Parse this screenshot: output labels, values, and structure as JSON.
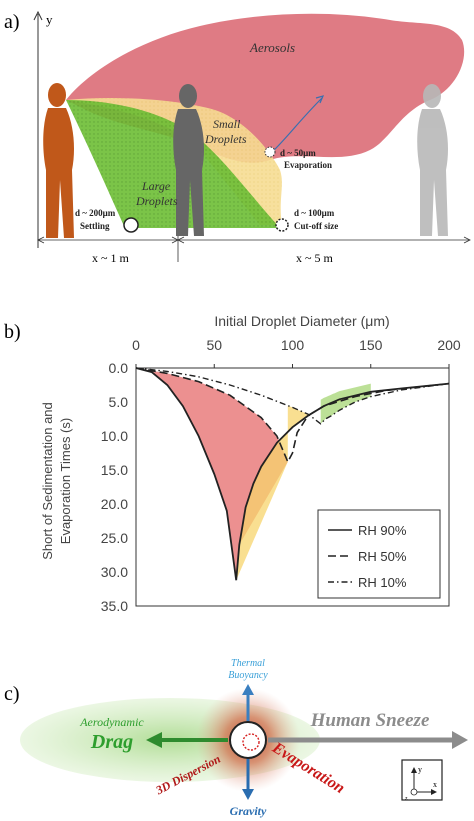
{
  "panel_a": {
    "label": "a)",
    "y_axis": "y",
    "aerosols": "Aerosols",
    "small_droplets_1": "Small",
    "small_droplets_2": "Droplets",
    "large_droplets_1": "Large",
    "large_droplets_2": "Droplets",
    "evap_size": "d ~ 50μm",
    "evap_label": "Evaporation",
    "settling_size": "d ~ 200μm",
    "settling_label": "Settling",
    "cutoff_size": "d ~ 100μm",
    "cutoff_label": "Cut-off size",
    "dist_near": "x ~ 1 m",
    "dist_far": "x ~ 5 m",
    "colors": {
      "aerosol": "#d9646e",
      "large": "#6fbf3a",
      "small": "#f5d98a",
      "person_front": "#c0581a",
      "person_mid": "#6b6b6b",
      "person_back": "#b0b0b0"
    }
  },
  "panel_b": {
    "label": "b)"
  },
  "chart_data": {
    "type": "line",
    "xlabel": "Initial Droplet Diameter (μm)",
    "ylabel_1": "Short of Sedimentation and",
    "ylabel_2": "Evaporation Times (s)",
    "x_ticks": [
      "0",
      "50",
      "100",
      "150",
      "200"
    ],
    "y_ticks": [
      "0.0",
      "5.0",
      "10.0",
      "15.0",
      "20.0",
      "25.0",
      "30.0",
      "35.0"
    ],
    "xlim": [
      0,
      200
    ],
    "ylim": [
      0,
      35
    ],
    "y_inverted": true,
    "x_axis_position": "top",
    "legend_position": "bottom-right",
    "series": [
      {
        "name": "RH 90%",
        "style": "solid",
        "x": [
          0,
          10,
          20,
          30,
          40,
          50,
          58,
          64,
          66,
          70,
          75,
          80,
          90,
          100,
          110,
          120,
          130,
          150,
          170,
          200
        ],
        "y": [
          0,
          0.6,
          2.5,
          5.6,
          10.0,
          15.6,
          21.0,
          31.2,
          26.0,
          20.5,
          17.0,
          14.5,
          11.0,
          8.7,
          7.0,
          5.6,
          4.6,
          3.5,
          3.0,
          2.3
        ]
      },
      {
        "name": "RH 50%",
        "style": "dashed",
        "x": [
          0,
          20,
          40,
          60,
          80,
          90,
          97,
          100,
          103,
          110,
          120,
          140,
          160,
          200
        ],
        "y": [
          0,
          0.8,
          2.0,
          4.0,
          7.3,
          10.0,
          13.8,
          12.5,
          9.5,
          7.0,
          5.6,
          4.2,
          3.3,
          2.3
        ]
      },
      {
        "name": "RH 10%",
        "style": "dash-dot",
        "x": [
          0,
          20,
          40,
          60,
          80,
          100,
          110,
          118,
          121,
          125,
          130,
          140,
          150,
          170,
          200
        ],
        "y": [
          0,
          0.5,
          1.3,
          2.5,
          4.0,
          5.8,
          6.8,
          8.2,
          7.5,
          7.0,
          6.2,
          5.0,
          4.2,
          3.2,
          2.3
        ]
      }
    ],
    "shaded_regions": [
      {
        "color": "#e66b6b",
        "description_hidden": true
      },
      {
        "color": "#f7d46c"
      },
      {
        "color": "#9fd36b"
      }
    ]
  },
  "panel_c": {
    "label": "c)",
    "thermal_1": "Thermal",
    "thermal_2": "Buoyancy",
    "aero_1": "Aerodynamic",
    "drag": "Drag",
    "human_sneeze": "Human Sneeze",
    "dispersion": "3D Dispersion",
    "evaporation": "Evaporation",
    "gravity": "Gravity",
    "axis_y": "y",
    "axis_x": "x",
    "axis_z": "z"
  }
}
